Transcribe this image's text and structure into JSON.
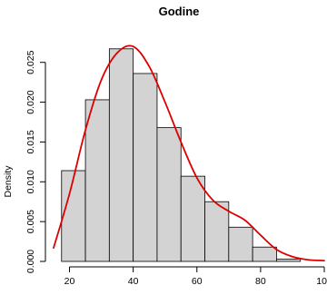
{
  "chart_data": {
    "type": "bar",
    "title": "Godine",
    "xlabel": "",
    "ylabel": "Density",
    "xlim": [
      15,
      100
    ],
    "ylim": [
      0,
      0.0285
    ],
    "bins": [
      {
        "x0": 17.5,
        "x1": 25,
        "density": 0.0114
      },
      {
        "x0": 25,
        "x1": 32.5,
        "density": 0.0203
      },
      {
        "x0": 32.5,
        "x1": 40,
        "density": 0.0267
      },
      {
        "x0": 40,
        "x1": 47.5,
        "density": 0.0236
      },
      {
        "x0": 47.5,
        "x1": 55,
        "density": 0.0168
      },
      {
        "x0": 55,
        "x1": 62.5,
        "density": 0.0107
      },
      {
        "x0": 62.5,
        "x1": 70,
        "density": 0.0075
      },
      {
        "x0": 70,
        "x1": 77.5,
        "density": 0.0043
      },
      {
        "x0": 77.5,
        "x1": 85,
        "density": 0.0018
      },
      {
        "x0": 85,
        "x1": 92.5,
        "density": 0.0003
      }
    ],
    "density_curve": {
      "x": [
        15,
        20,
        25,
        30,
        35,
        40,
        45,
        50,
        55,
        60,
        65,
        70,
        75,
        80,
        85,
        90,
        95,
        100
      ],
      "y": [
        0.0017,
        0.0085,
        0.0165,
        0.0228,
        0.0262,
        0.027,
        0.0245,
        0.02,
        0.015,
        0.0105,
        0.0077,
        0.0063,
        0.0052,
        0.0033,
        0.0015,
        0.0006,
        0.0002,
        0.0001
      ]
    },
    "x_ticks": [
      20,
      40,
      60,
      80,
      100
    ],
    "x_tick_labels": [
      "20",
      "40",
      "60",
      "80",
      "100"
    ],
    "y_ticks": [
      0,
      0.005,
      0.01,
      0.015,
      0.02,
      0.025
    ],
    "y_tick_labels": [
      "0.000",
      "0.005",
      "0.010",
      "0.015",
      "0.020",
      "0.025"
    ],
    "grid": false,
    "colors": {
      "bar_fill": "#d3d3d3",
      "bar_stroke": "#000000",
      "curve": "#dd0000"
    }
  }
}
